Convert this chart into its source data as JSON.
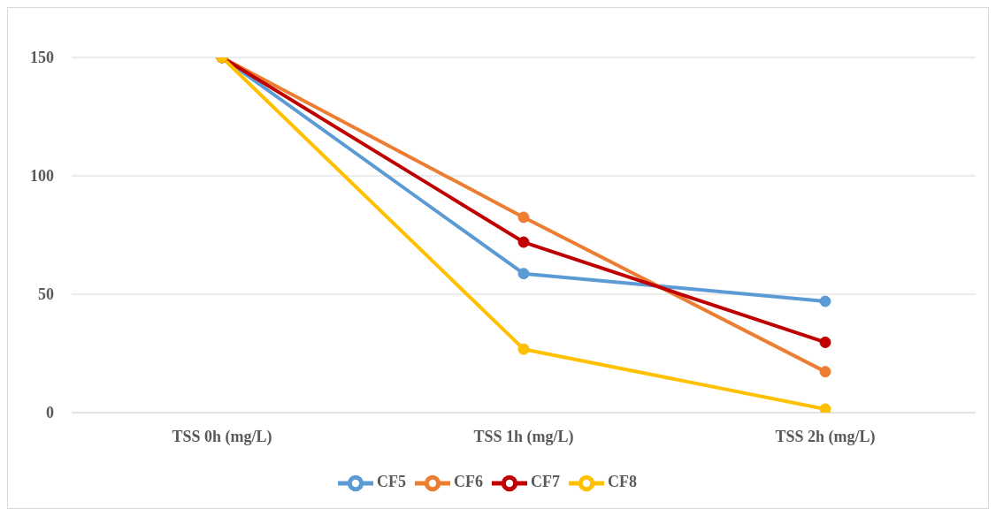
{
  "chart_data": {
    "type": "line",
    "categories": [
      "TSS 0h (mg/L)",
      "TSS 1h (mg/L)",
      "TSS 2h (mg/L)"
    ],
    "series": [
      {
        "name": "CF5",
        "color": "#5b9bd5",
        "values": [
          150,
          58.7,
          47
        ]
      },
      {
        "name": "CF6",
        "color": "#ed7d31",
        "values": [
          150,
          82.5,
          17.3
        ]
      },
      {
        "name": "CF7",
        "color": "#c00000",
        "values": [
          150,
          72,
          29.7
        ]
      },
      {
        "name": "CF8",
        "color": "#ffc000",
        "values": [
          150,
          26.8,
          1.5
        ]
      }
    ],
    "ylim": [
      0,
      150
    ],
    "yticks": [
      0,
      50,
      100,
      150
    ],
    "grid": "y",
    "legend": "bottom",
    "marker": "circle",
    "line_style": "solid"
  }
}
